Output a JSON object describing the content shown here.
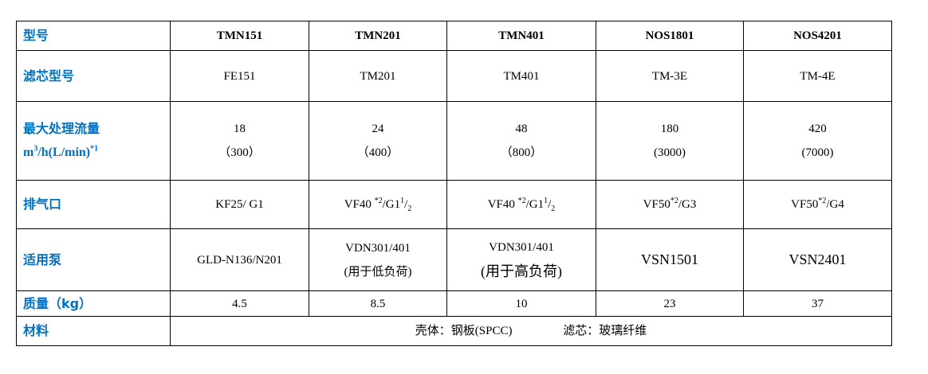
{
  "table": {
    "rows": [
      {
        "label": [
          {
            "t": "型号"
          }
        ],
        "cells": [
          [
            [
              {
                "t": "TMN151"
              }
            ]
          ],
          [
            [
              {
                "t": "TMN201"
              }
            ]
          ],
          [
            [
              {
                "t": "TMN401"
              }
            ]
          ],
          [
            [
              {
                "t": "NOS1801"
              }
            ]
          ],
          [
            [
              {
                "t": "NOS4201"
              }
            ]
          ]
        ]
      },
      {
        "label": [
          {
            "t": "滤芯型号"
          }
        ],
        "cells": [
          [
            [
              {
                "t": "FE151"
              }
            ]
          ],
          [
            [
              {
                "t": "TM201"
              }
            ]
          ],
          [
            [
              {
                "t": "TM401"
              }
            ]
          ],
          [
            [
              {
                "t": "TM-3E"
              }
            ]
          ],
          [
            [
              {
                "t": "TM-4E"
              }
            ]
          ]
        ]
      },
      {
        "label": [
          {
            "t": "最大处理流量"
          }
        ],
        "label2": [
          {
            "t": "m"
          },
          {
            "t": "3",
            "sup": true
          },
          {
            "t": "/h(L/min)"
          },
          {
            "t": "*1",
            "sup": true
          }
        ],
        "cells": [
          [
            [
              {
                "t": "18"
              }
            ],
            [
              {
                "t": "（300）"
              }
            ]
          ],
          [
            [
              {
                "t": "24"
              }
            ],
            [
              {
                "t": "（400）"
              }
            ]
          ],
          [
            [
              {
                "t": "48"
              }
            ],
            [
              {
                "t": "（800）"
              }
            ]
          ],
          [
            [
              {
                "t": "180"
              }
            ],
            [
              {
                "t": "(3000)"
              }
            ]
          ],
          [
            [
              {
                "t": "420"
              }
            ],
            [
              {
                "t": "(7000)"
              }
            ]
          ]
        ]
      },
      {
        "label": [
          {
            "t": "排气口"
          }
        ],
        "cells": [
          [
            [
              {
                "t": "KF25/ G1"
              }
            ]
          ],
          [
            [
              {
                "t": "VF40 "
              },
              {
                "t": "*2",
                "sup": true
              },
              {
                "t": "/G1"
              },
              {
                "t": "1",
                "sup": true
              },
              {
                "t": "/"
              },
              {
                "t": "2",
                "sub": true
              }
            ]
          ],
          [
            [
              {
                "t": "VF40 "
              },
              {
                "t": "*2",
                "sup": true
              },
              {
                "t": "/G1"
              },
              {
                "t": "1",
                "sup": true
              },
              {
                "t": "/"
              },
              {
                "t": "2",
                "sub": true
              }
            ]
          ],
          [
            [
              {
                "t": "VF50"
              },
              {
                "t": "*2",
                "sup": true
              },
              {
                "t": "/G3"
              }
            ]
          ],
          [
            [
              {
                "t": "VF50"
              },
              {
                "t": "*2",
                "sup": true
              },
              {
                "t": "/G4"
              }
            ]
          ]
        ]
      },
      {
        "label": [
          {
            "t": "适用泵"
          }
        ],
        "cells": [
          [
            [
              {
                "t": "GLD-N136/N201"
              }
            ]
          ],
          [
            [
              {
                "t": "VDN301/401"
              }
            ],
            [
              {
                "t": "(用于低负荷)"
              }
            ]
          ],
          [
            [
              {
                "t": "VDN301/401"
              }
            ],
            [
              {
                "t": "(用于高负荷)",
                "big": true
              }
            ]
          ],
          [
            [
              {
                "t": "VSN1501",
                "big": true
              }
            ]
          ],
          [
            [
              {
                "t": "VSN2401",
                "big": true
              }
            ]
          ]
        ]
      },
      {
        "label": [
          {
            "t": "质量（kg）"
          }
        ],
        "cells": [
          [
            [
              {
                "t": "4.5"
              }
            ]
          ],
          [
            [
              {
                "t": "8.5"
              }
            ]
          ],
          [
            [
              {
                "t": "10"
              }
            ]
          ],
          [
            [
              {
                "t": "23"
              }
            ]
          ],
          [
            [
              {
                "t": "37"
              }
            ]
          ]
        ]
      }
    ],
    "material": {
      "label": "材料",
      "shell": "壳体：钢板(SPCC)",
      "filter": "滤芯：玻璃纤维"
    },
    "label_color": "#0070c0"
  }
}
